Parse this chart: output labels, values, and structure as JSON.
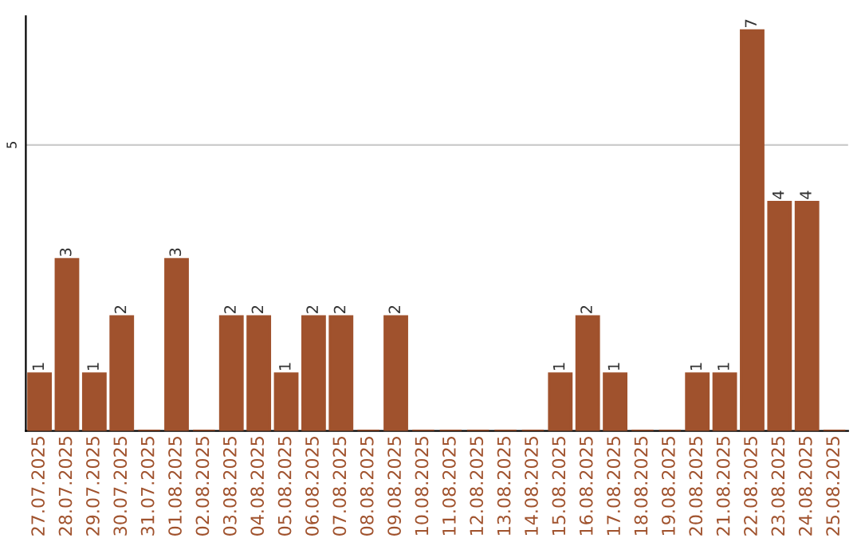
{
  "chart_data": {
    "type": "bar",
    "categories": [
      "27.07.2025",
      "28.07.2025",
      "29.07.2025",
      "30.07.2025",
      "31.07.2025",
      "01.08.2025",
      "02.08.2025",
      "03.08.2025",
      "04.08.2025",
      "05.08.2025",
      "06.08.2025",
      "07.08.2025",
      "08.08.2025",
      "09.08.2025",
      "10.08.2025",
      "11.08.2025",
      "12.08.2025",
      "13.08.2025",
      "14.08.2025",
      "15.08.2025",
      "16.08.2025",
      "17.08.2025",
      "18.08.2025",
      "19.08.2025",
      "20.08.2025",
      "21.08.2025",
      "22.08.2025",
      "23.08.2025",
      "24.08.2025",
      "25.08.2025"
    ],
    "values": [
      1,
      3,
      1,
      2,
      0,
      3,
      0,
      2,
      2,
      1,
      2,
      2,
      0,
      2,
      0,
      0,
      0,
      0,
      0,
      1,
      2,
      1,
      0,
      0,
      1,
      1,
      7,
      4,
      4,
      0
    ],
    "value_labels": [
      "1",
      "3",
      "1",
      "2",
      null,
      "3",
      null,
      "2",
      "2",
      "1",
      "2",
      "2",
      null,
      "2",
      null,
      null,
      null,
      null,
      null,
      "1",
      "2",
      "1",
      null,
      null,
      "1",
      "1",
      "7",
      "4",
      "4",
      null
    ],
    "color": "#a0522d",
    "ylim": [
      0,
      7.25
    ],
    "yticks": [
      5
    ],
    "grid": "y"
  }
}
